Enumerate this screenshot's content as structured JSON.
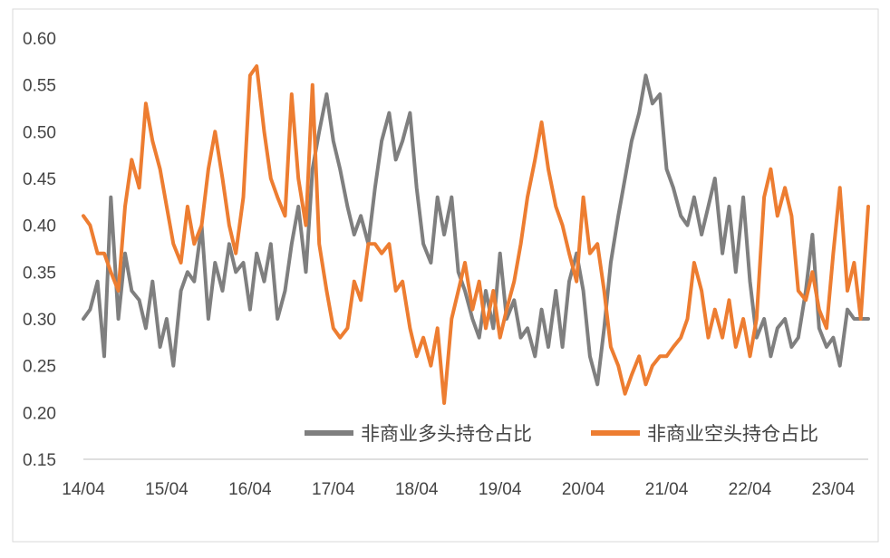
{
  "chart_data": {
    "type": "line",
    "title": "",
    "xlabel": "",
    "ylabel": "",
    "ylim": [
      0.15,
      0.6
    ],
    "yticks": [
      "0.15",
      "0.20",
      "0.25",
      "0.30",
      "0.35",
      "0.40",
      "0.45",
      "0.50",
      "0.55",
      "0.60"
    ],
    "x_range": [
      2014.25,
      2023.67
    ],
    "xticks": [
      {
        "label": "14/04",
        "x": 2014.25
      },
      {
        "label": "15/04",
        "x": 2015.25
      },
      {
        "label": "16/04",
        "x": 2016.25
      },
      {
        "label": "17/04",
        "x": 2017.25
      },
      {
        "label": "18/04",
        "x": 2018.25
      },
      {
        "label": "19/04",
        "x": 2019.25
      },
      {
        "label": "20/04",
        "x": 2020.25
      },
      {
        "label": "21/04",
        "x": 2021.25
      },
      {
        "label": "22/04",
        "x": 2022.25
      },
      {
        "label": "23/04",
        "x": 2023.25
      }
    ],
    "grid": false,
    "legend_position": "bottom-right",
    "series": [
      {
        "name": "非商业多头持仓占比",
        "color": "#7f7f7f",
        "points": [
          [
            2014.25,
            0.3
          ],
          [
            2014.33,
            0.31
          ],
          [
            2014.42,
            0.34
          ],
          [
            2014.5,
            0.26
          ],
          [
            2014.58,
            0.43
          ],
          [
            2014.67,
            0.3
          ],
          [
            2014.75,
            0.37
          ],
          [
            2014.83,
            0.33
          ],
          [
            2014.92,
            0.32
          ],
          [
            2015.0,
            0.29
          ],
          [
            2015.08,
            0.34
          ],
          [
            2015.17,
            0.27
          ],
          [
            2015.25,
            0.3
          ],
          [
            2015.33,
            0.25
          ],
          [
            2015.42,
            0.33
          ],
          [
            2015.5,
            0.35
          ],
          [
            2015.58,
            0.34
          ],
          [
            2015.67,
            0.4
          ],
          [
            2015.75,
            0.3
          ],
          [
            2015.83,
            0.36
          ],
          [
            2015.92,
            0.33
          ],
          [
            2016.0,
            0.38
          ],
          [
            2016.08,
            0.35
          ],
          [
            2016.17,
            0.36
          ],
          [
            2016.25,
            0.31
          ],
          [
            2016.33,
            0.37
          ],
          [
            2016.42,
            0.34
          ],
          [
            2016.5,
            0.38
          ],
          [
            2016.58,
            0.3
          ],
          [
            2016.67,
            0.33
          ],
          [
            2016.75,
            0.38
          ],
          [
            2016.83,
            0.42
          ],
          [
            2016.92,
            0.35
          ],
          [
            2017.0,
            0.46
          ],
          [
            2017.08,
            0.5
          ],
          [
            2017.17,
            0.54
          ],
          [
            2017.25,
            0.49
          ],
          [
            2017.33,
            0.46
          ],
          [
            2017.42,
            0.42
          ],
          [
            2017.5,
            0.39
          ],
          [
            2017.58,
            0.41
          ],
          [
            2017.67,
            0.38
          ],
          [
            2017.75,
            0.44
          ],
          [
            2017.83,
            0.49
          ],
          [
            2017.92,
            0.52
          ],
          [
            2018.0,
            0.47
          ],
          [
            2018.08,
            0.49
          ],
          [
            2018.17,
            0.52
          ],
          [
            2018.25,
            0.44
          ],
          [
            2018.33,
            0.38
          ],
          [
            2018.42,
            0.36
          ],
          [
            2018.5,
            0.43
          ],
          [
            2018.58,
            0.39
          ],
          [
            2018.67,
            0.43
          ],
          [
            2018.75,
            0.35
          ],
          [
            2018.83,
            0.33
          ],
          [
            2018.92,
            0.3
          ],
          [
            2019.0,
            0.28
          ],
          [
            2019.08,
            0.33
          ],
          [
            2019.17,
            0.29
          ],
          [
            2019.25,
            0.37
          ],
          [
            2019.33,
            0.3
          ],
          [
            2019.42,
            0.32
          ],
          [
            2019.5,
            0.28
          ],
          [
            2019.58,
            0.29
          ],
          [
            2019.67,
            0.26
          ],
          [
            2019.75,
            0.31
          ],
          [
            2019.83,
            0.27
          ],
          [
            2019.92,
            0.33
          ],
          [
            2020.0,
            0.27
          ],
          [
            2020.08,
            0.34
          ],
          [
            2020.17,
            0.37
          ],
          [
            2020.25,
            0.33
          ],
          [
            2020.33,
            0.26
          ],
          [
            2020.42,
            0.23
          ],
          [
            2020.5,
            0.29
          ],
          [
            2020.58,
            0.36
          ],
          [
            2020.67,
            0.41
          ],
          [
            2020.75,
            0.45
          ],
          [
            2020.83,
            0.49
          ],
          [
            2020.92,
            0.52
          ],
          [
            2021.0,
            0.56
          ],
          [
            2021.08,
            0.53
          ],
          [
            2021.17,
            0.54
          ],
          [
            2021.25,
            0.46
          ],
          [
            2021.33,
            0.44
          ],
          [
            2021.42,
            0.41
          ],
          [
            2021.5,
            0.4
          ],
          [
            2021.58,
            0.43
          ],
          [
            2021.67,
            0.39
          ],
          [
            2021.75,
            0.42
          ],
          [
            2021.83,
            0.45
          ],
          [
            2021.92,
            0.37
          ],
          [
            2022.0,
            0.42
          ],
          [
            2022.08,
            0.35
          ],
          [
            2022.17,
            0.43
          ],
          [
            2022.25,
            0.34
          ],
          [
            2022.33,
            0.28
          ],
          [
            2022.42,
            0.3
          ],
          [
            2022.5,
            0.26
          ],
          [
            2022.58,
            0.29
          ],
          [
            2022.67,
            0.3
          ],
          [
            2022.75,
            0.27
          ],
          [
            2022.83,
            0.28
          ],
          [
            2022.92,
            0.33
          ],
          [
            2023.0,
            0.39
          ],
          [
            2023.08,
            0.29
          ],
          [
            2023.17,
            0.27
          ],
          [
            2023.25,
            0.28
          ],
          [
            2023.33,
            0.25
          ],
          [
            2023.42,
            0.31
          ],
          [
            2023.5,
            0.3
          ],
          [
            2023.58,
            0.3
          ],
          [
            2023.67,
            0.3
          ]
        ]
      },
      {
        "name": "非商业空头持仓占比",
        "color": "#ed7d31",
        "points": [
          [
            2014.25,
            0.41
          ],
          [
            2014.33,
            0.4
          ],
          [
            2014.42,
            0.37
          ],
          [
            2014.5,
            0.37
          ],
          [
            2014.58,
            0.35
          ],
          [
            2014.67,
            0.33
          ],
          [
            2014.75,
            0.42
          ],
          [
            2014.83,
            0.47
          ],
          [
            2014.92,
            0.44
          ],
          [
            2015.0,
            0.53
          ],
          [
            2015.08,
            0.49
          ],
          [
            2015.17,
            0.46
          ],
          [
            2015.25,
            0.42
          ],
          [
            2015.33,
            0.38
          ],
          [
            2015.42,
            0.36
          ],
          [
            2015.5,
            0.42
          ],
          [
            2015.58,
            0.38
          ],
          [
            2015.67,
            0.4
          ],
          [
            2015.75,
            0.46
          ],
          [
            2015.83,
            0.5
          ],
          [
            2015.92,
            0.45
          ],
          [
            2016.0,
            0.4
          ],
          [
            2016.08,
            0.37
          ],
          [
            2016.17,
            0.43
          ],
          [
            2016.25,
            0.56
          ],
          [
            2016.33,
            0.57
          ],
          [
            2016.42,
            0.5
          ],
          [
            2016.5,
            0.45
          ],
          [
            2016.58,
            0.43
          ],
          [
            2016.67,
            0.41
          ],
          [
            2016.75,
            0.54
          ],
          [
            2016.83,
            0.45
          ],
          [
            2016.92,
            0.4
          ],
          [
            2017.0,
            0.55
          ],
          [
            2017.08,
            0.38
          ],
          [
            2017.17,
            0.33
          ],
          [
            2017.25,
            0.29
          ],
          [
            2017.33,
            0.28
          ],
          [
            2017.42,
            0.29
          ],
          [
            2017.5,
            0.34
          ],
          [
            2017.58,
            0.32
          ],
          [
            2017.67,
            0.38
          ],
          [
            2017.75,
            0.38
          ],
          [
            2017.83,
            0.37
          ],
          [
            2017.92,
            0.38
          ],
          [
            2018.0,
            0.33
          ],
          [
            2018.08,
            0.34
          ],
          [
            2018.17,
            0.29
          ],
          [
            2018.25,
            0.26
          ],
          [
            2018.33,
            0.28
          ],
          [
            2018.42,
            0.25
          ],
          [
            2018.5,
            0.29
          ],
          [
            2018.58,
            0.21
          ],
          [
            2018.67,
            0.3
          ],
          [
            2018.75,
            0.33
          ],
          [
            2018.83,
            0.36
          ],
          [
            2018.92,
            0.31
          ],
          [
            2019.0,
            0.34
          ],
          [
            2019.08,
            0.29
          ],
          [
            2019.17,
            0.33
          ],
          [
            2019.25,
            0.28
          ],
          [
            2019.33,
            0.31
          ],
          [
            2019.42,
            0.34
          ],
          [
            2019.5,
            0.38
          ],
          [
            2019.58,
            0.43
          ],
          [
            2019.67,
            0.47
          ],
          [
            2019.75,
            0.51
          ],
          [
            2019.83,
            0.46
          ],
          [
            2019.92,
            0.42
          ],
          [
            2020.0,
            0.4
          ],
          [
            2020.08,
            0.37
          ],
          [
            2020.17,
            0.34
          ],
          [
            2020.25,
            0.43
          ],
          [
            2020.33,
            0.37
          ],
          [
            2020.42,
            0.38
          ],
          [
            2020.5,
            0.33
          ],
          [
            2020.58,
            0.27
          ],
          [
            2020.67,
            0.25
          ],
          [
            2020.75,
            0.22
          ],
          [
            2020.83,
            0.24
          ],
          [
            2020.92,
            0.26
          ],
          [
            2021.0,
            0.23
          ],
          [
            2021.08,
            0.25
          ],
          [
            2021.17,
            0.26
          ],
          [
            2021.25,
            0.26
          ],
          [
            2021.33,
            0.27
          ],
          [
            2021.42,
            0.28
          ],
          [
            2021.5,
            0.3
          ],
          [
            2021.58,
            0.36
          ],
          [
            2021.67,
            0.33
          ],
          [
            2021.75,
            0.28
          ],
          [
            2021.83,
            0.31
          ],
          [
            2021.92,
            0.28
          ],
          [
            2022.0,
            0.32
          ],
          [
            2022.08,
            0.27
          ],
          [
            2022.17,
            0.3
          ],
          [
            2022.25,
            0.26
          ],
          [
            2022.33,
            0.3
          ],
          [
            2022.42,
            0.43
          ],
          [
            2022.5,
            0.46
          ],
          [
            2022.58,
            0.41
          ],
          [
            2022.67,
            0.44
          ],
          [
            2022.75,
            0.41
          ],
          [
            2022.83,
            0.33
          ],
          [
            2022.92,
            0.32
          ],
          [
            2023.0,
            0.35
          ],
          [
            2023.08,
            0.31
          ],
          [
            2023.17,
            0.29
          ],
          [
            2023.25,
            0.37
          ],
          [
            2023.33,
            0.44
          ],
          [
            2023.42,
            0.33
          ],
          [
            2023.5,
            0.36
          ],
          [
            2023.58,
            0.3
          ],
          [
            2023.67,
            0.42
          ]
        ]
      }
    ]
  }
}
